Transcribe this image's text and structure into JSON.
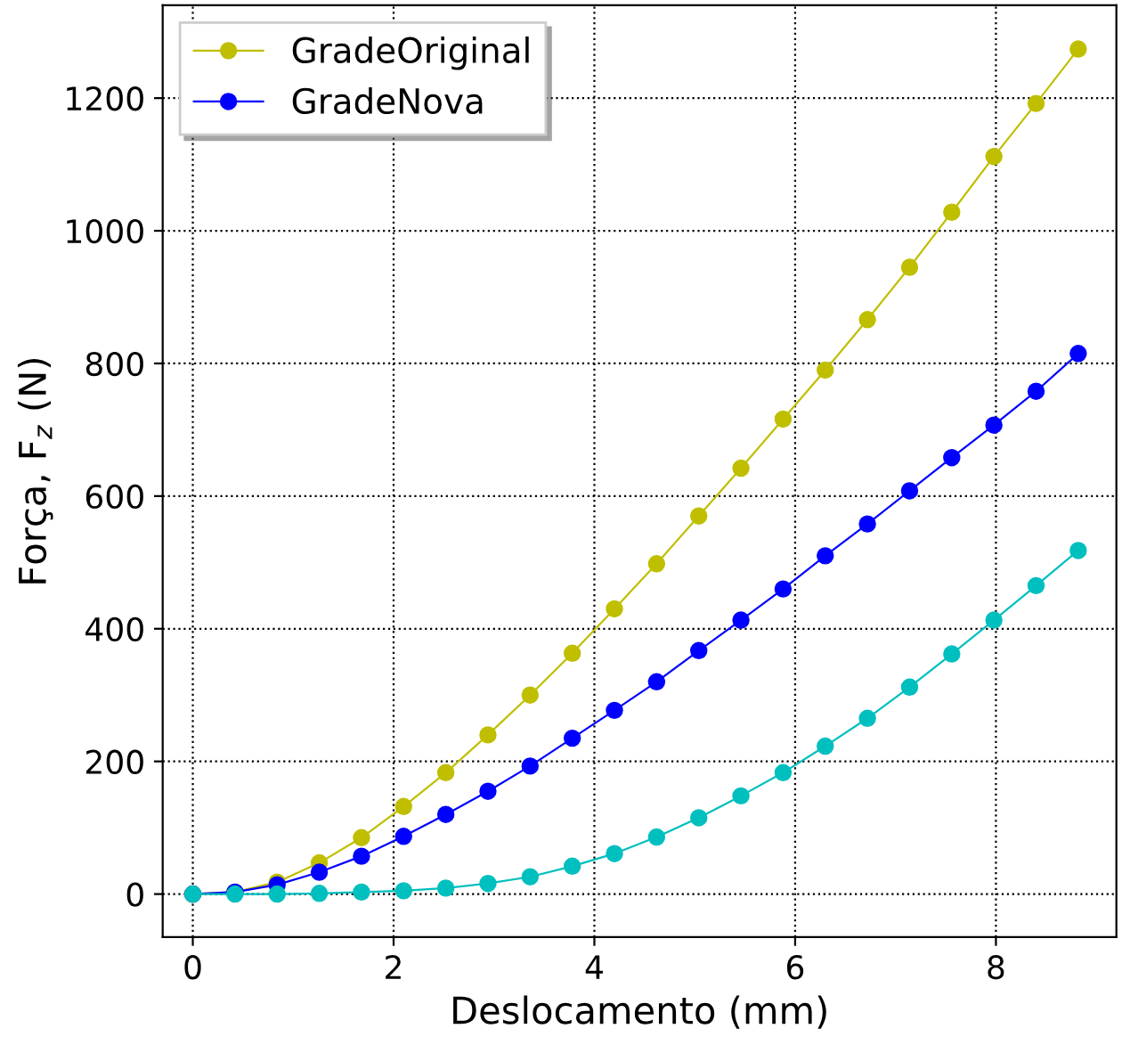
{
  "chart_data": {
    "type": "line",
    "xlabel": "Deslocamento (mm)",
    "ylabel": "Força, F$_{z}$ (N)",
    "x": [
      0,
      0.42,
      0.84,
      1.26,
      1.68,
      2.1,
      2.52,
      2.94,
      3.36,
      3.78,
      4.2,
      4.62,
      5.04,
      5.46,
      5.88,
      6.3,
      6.72,
      7.14,
      7.56,
      7.98,
      8.4,
      8.82
    ],
    "series": [
      {
        "name": "GradeOriginal",
        "color": "#bfbf00",
        "values": [
          0,
          3,
          18,
          47,
          85,
          132,
          183,
          240,
          300,
          363,
          430,
          498,
          570,
          642,
          716,
          790,
          866,
          945,
          1028,
          1112,
          1192,
          1274
        ]
      },
      {
        "name": "GradeNova",
        "color": "#0000ff",
        "values": [
          0,
          3,
          14,
          33,
          57,
          87,
          120,
          155,
          193,
          235,
          277,
          320,
          367,
          413,
          460,
          510,
          558,
          608,
          658,
          707,
          758,
          815
        ]
      },
      {
        "color": "#00bfbf",
        "values": [
          0,
          0,
          0,
          1,
          3,
          5,
          9,
          16,
          26,
          42,
          61,
          86,
          115,
          148,
          183,
          223,
          265,
          312,
          362,
          413,
          465,
          518
        ]
      }
    ],
    "xlim": [
      -0.3,
      9.2
    ],
    "ylim": [
      -65,
      1340
    ],
    "xticks": [
      0,
      2,
      4,
      6,
      8
    ],
    "yticks": [
      0,
      200,
      400,
      600,
      800,
      1000,
      1200
    ],
    "grid": true,
    "legend": "top left",
    "marker": "circle",
    "line_style": "solid"
  }
}
